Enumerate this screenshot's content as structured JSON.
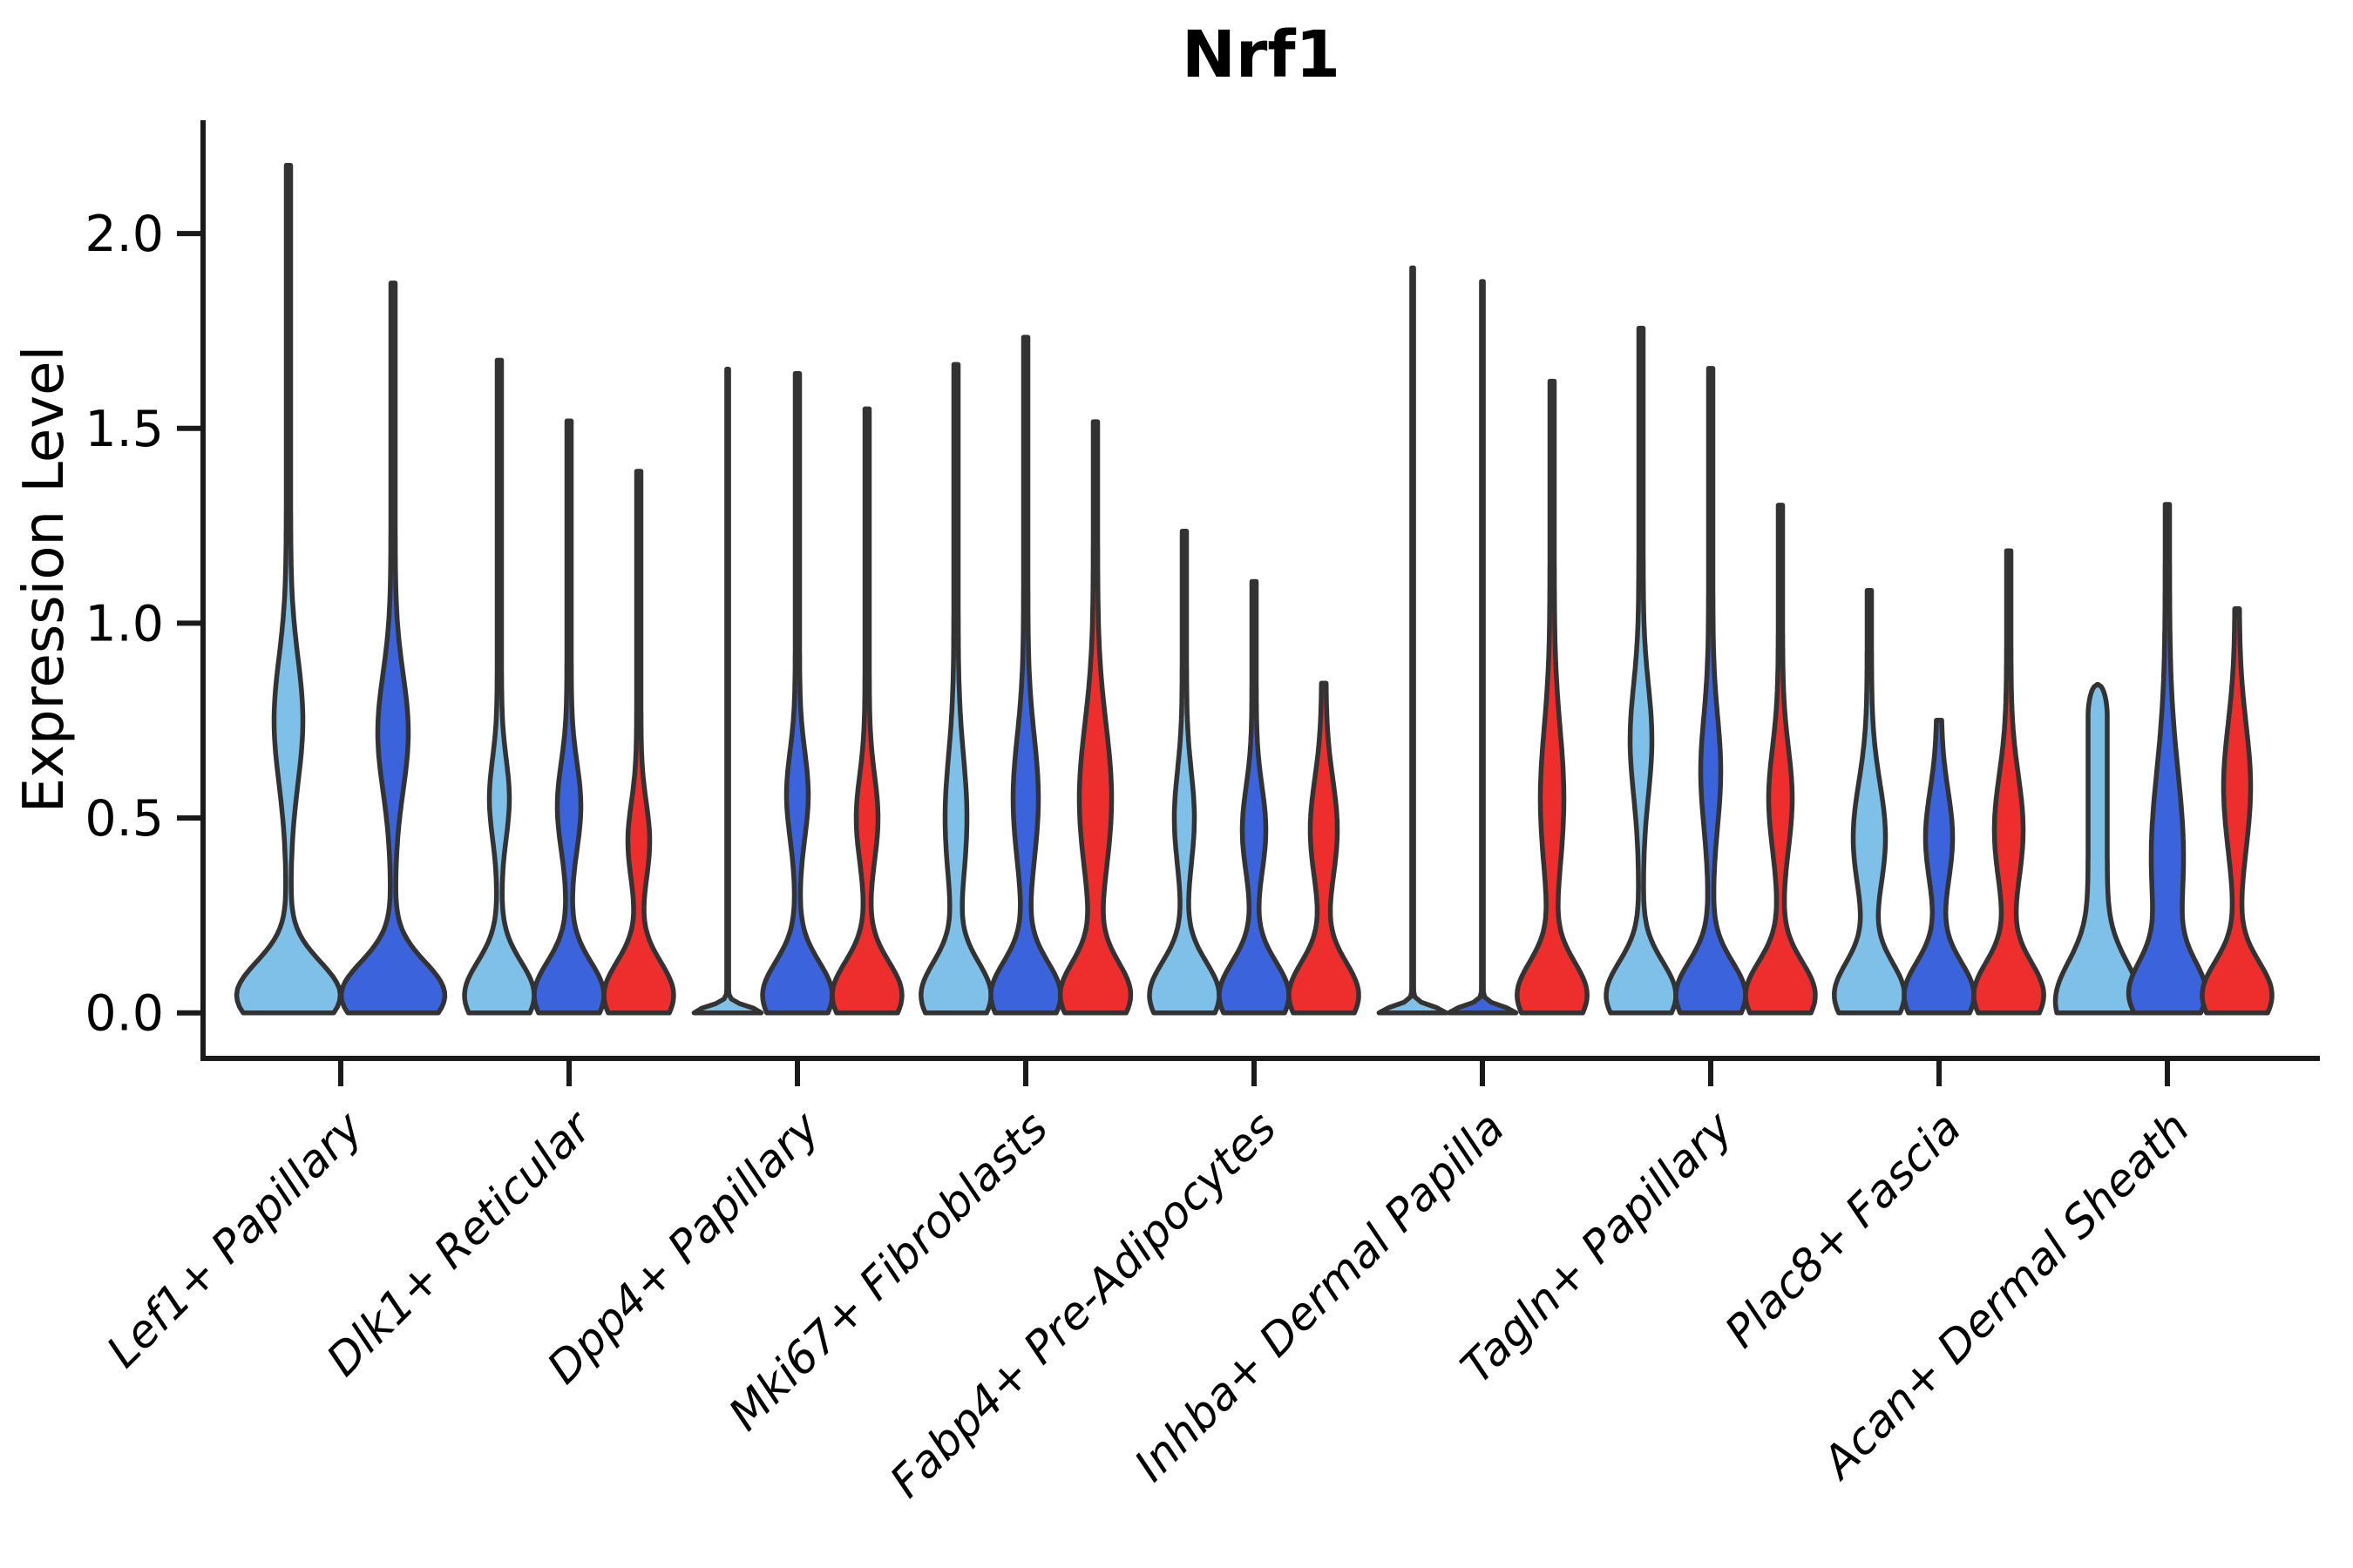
{
  "chart_data": {
    "type": "violin",
    "title": "Nrf1",
    "xlabel": "",
    "ylabel": "Expression Level",
    "ytick_labels": [
      "0.0",
      "0.5",
      "1.0",
      "1.5",
      "2.0"
    ],
    "ytick_values": [
      0.0,
      0.5,
      1.0,
      1.5,
      2.0
    ],
    "ylim": [
      -0.11,
      2.29
    ],
    "grid": false,
    "legend": "none",
    "x_label_rotation_deg": 45,
    "axis_color": "#1a1a1a",
    "violin_outline_color": "#333333",
    "splits": [
      {
        "label": "light-blue",
        "color": "#7EC0E8"
      },
      {
        "label": "blue",
        "color": "#3A63DC"
      },
      {
        "label": "red",
        "color": "#EE2E2C"
      }
    ],
    "categories": [
      "Lef1+ Papillary",
      "Dlk1+ Reticular",
      "Dpp4+ Papillary",
      "Mki67+ Fibroblasts",
      "Fabp4+ Pre-Adipocytes",
      "Inhba+ Dermal Papilla",
      "Tagln+ Papillary",
      "Plac8+ Fascia",
      "Acan+ Dermal Sheath"
    ],
    "violins": [
      {
        "category": "Lef1+ Papillary",
        "series": [
          {
            "split": 0,
            "max": 2.175,
            "type": "normal",
            "offset": -60,
            "half_width": 57,
            "bump": {
              "center": 0.75,
              "sigma": 0.16,
              "half_width": 14
            }
          },
          {
            "split": 1,
            "max": 1.873,
            "type": "normal",
            "offset": 60,
            "half_width": 57,
            "bump": {
              "center": 0.72,
              "sigma": 0.15,
              "half_width": 15
            }
          }
        ]
      },
      {
        "category": "Dlk1+ Reticular",
        "series": [
          {
            "split": 0,
            "max": 1.675,
            "type": "normal",
            "offset": -80,
            "half_width": 37.5,
            "bump": {
              "center": 0.55,
              "sigma": 0.1,
              "half_width": 9
            }
          },
          {
            "split": 1,
            "max": 1.519,
            "type": "normal",
            "offset": 0,
            "half_width": 37.5,
            "bump": {
              "center": 0.53,
              "sigma": 0.11,
              "half_width": 11
            }
          },
          {
            "split": 2,
            "max": 1.39,
            "type": "normal",
            "offset": 80,
            "half_width": 37.5,
            "bump": {
              "center": 0.44,
              "sigma": 0.1,
              "half_width": 10
            }
          }
        ]
      },
      {
        "category": "Dpp4+ Papillary",
        "series": [
          {
            "split": 0,
            "max": 1.652,
            "type": "line",
            "offset": -80,
            "half_width": 37.5
          },
          {
            "split": 1,
            "max": 1.641,
            "type": "normal",
            "offset": 0,
            "half_width": 37.5,
            "bump": {
              "center": 0.56,
              "sigma": 0.11,
              "half_width": 10
            }
          },
          {
            "split": 2,
            "max": 1.55,
            "type": "normal",
            "offset": 80,
            "half_width": 37.5,
            "bump": {
              "center": 0.5,
              "sigma": 0.11,
              "half_width": 10
            }
          }
        ]
      },
      {
        "category": "Mki67+ Fibroblasts",
        "series": [
          {
            "split": 0,
            "max": 1.664,
            "type": "normal",
            "offset": -80,
            "half_width": 37.5,
            "bump": {
              "center": 0.5,
              "sigma": 0.16,
              "half_width": 10
            }
          },
          {
            "split": 1,
            "max": 1.734,
            "type": "normal",
            "offset": 0,
            "half_width": 37.5,
            "bump": {
              "center": 0.55,
              "sigma": 0.16,
              "half_width": 12
            }
          },
          {
            "split": 2,
            "max": 1.517,
            "type": "normal",
            "offset": 80,
            "half_width": 37.5,
            "bump": {
              "center": 0.55,
              "sigma": 0.19,
              "half_width": 16
            }
          }
        ]
      },
      {
        "category": "Fabp4+ Pre-Adipocytes",
        "series": [
          {
            "split": 0,
            "max": 1.236,
            "type": "normal",
            "offset": -80,
            "half_width": 37.5,
            "bump": {
              "center": 0.5,
              "sigma": 0.12,
              "half_width": 9
            }
          },
          {
            "split": 1,
            "max": 1.107,
            "type": "normal",
            "offset": 0,
            "half_width": 37.5,
            "bump": {
              "center": 0.47,
              "sigma": 0.11,
              "half_width": 11
            }
          },
          {
            "split": 2,
            "max": 0.846,
            "type": "normal",
            "offset": 80,
            "half_width": 37.5,
            "bump": {
              "center": 0.47,
              "sigma": 0.13,
              "half_width": 13
            }
          }
        ]
      },
      {
        "category": "Inhba+ Dermal Papilla",
        "series": [
          {
            "split": 0,
            "max": 1.912,
            "type": "line",
            "offset": -80,
            "half_width": 37.5
          },
          {
            "split": 1,
            "max": 1.877,
            "type": "line",
            "offset": 0,
            "half_width": 37.5
          },
          {
            "split": 2,
            "max": 1.621,
            "type": "normal",
            "offset": 80,
            "half_width": 37.5,
            "bump": {
              "center": 0.55,
              "sigma": 0.18,
              "half_width": 11
            }
          }
        ]
      },
      {
        "category": "Tagln+ Papillary",
        "series": [
          {
            "split": 0,
            "max": 1.757,
            "type": "normal",
            "offset": -80,
            "half_width": 37.5,
            "bump": {
              "center": 0.7,
              "sigma": 0.14,
              "half_width": 10
            }
          },
          {
            "split": 1,
            "max": 1.654,
            "type": "normal",
            "offset": 0,
            "half_width": 37.5,
            "bump": {
              "center": 0.62,
              "sigma": 0.14,
              "half_width": 9
            }
          },
          {
            "split": 2,
            "max": 1.303,
            "type": "normal",
            "offset": 80,
            "half_width": 37.5,
            "bump": {
              "center": 0.55,
              "sigma": 0.13,
              "half_width": 11
            }
          }
        ]
      },
      {
        "category": "Plac8+ Fascia",
        "series": [
          {
            "split": 0,
            "max": 1.084,
            "type": "normal",
            "offset": -80,
            "half_width": 37.5,
            "bump": {
              "center": 0.45,
              "sigma": 0.14,
              "half_width": 16
            }
          },
          {
            "split": 1,
            "max": 0.751,
            "type": "normal",
            "offset": 0,
            "half_width": 37.5,
            "bump": {
              "center": 0.45,
              "sigma": 0.12,
              "half_width": 13
            }
          },
          {
            "split": 2,
            "max": 1.186,
            "type": "normal",
            "offset": 80,
            "half_width": 37.5,
            "bump": {
              "center": 0.47,
              "sigma": 0.14,
              "half_width": 14
            }
          }
        ]
      },
      {
        "category": "Acan+ Dermal Sheath",
        "series": [
          {
            "split": 0,
            "max": 0.843,
            "type": "blunt",
            "offset": -80,
            "half_width": 37.5,
            "cap": {
              "start": 0.76,
              "half_width": 11
            }
          },
          {
            "split": 1,
            "max": 1.305,
            "type": "normal",
            "offset": 0,
            "half_width": 37.5,
            "bump": {
              "center": 0.4,
              "sigma": 0.22,
              "half_width": 16
            }
          },
          {
            "split": 2,
            "max": 1.037,
            "type": "normal",
            "offset": 80,
            "half_width": 37.5,
            "bump": {
              "center": 0.58,
              "sigma": 0.16,
              "half_width": 13
            }
          }
        ]
      }
    ]
  }
}
